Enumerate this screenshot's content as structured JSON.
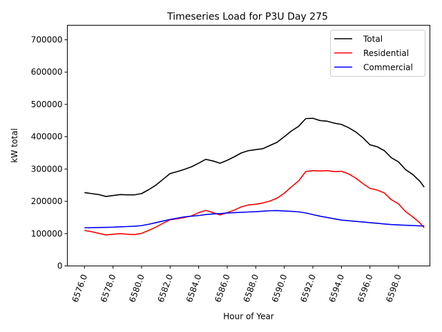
{
  "chart_data": {
    "type": "line",
    "title": "Timeseries Load for P3U   Day 275",
    "xlabel": "Hour of Year",
    "ylabel": "kW total",
    "xlim": [
      6574.8,
      6600.2
    ],
    "ylim": [
      0,
      745000
    ],
    "xticks": [
      6576,
      6578,
      6580,
      6582,
      6584,
      6586,
      6588,
      6590,
      6592,
      6594,
      6596,
      6598
    ],
    "xtick_labels": [
      "6576.0",
      "6578.0",
      "6580.0",
      "6582.0",
      "6584.0",
      "6586.0",
      "6588.0",
      "6590.0",
      "6592.0",
      "6594.0",
      "6596.0",
      "6598.0"
    ],
    "yticks": [
      0,
      100000,
      200000,
      300000,
      400000,
      500000,
      600000,
      700000
    ],
    "ytick_labels": [
      "0",
      "100000",
      "200000",
      "300000",
      "400000",
      "500000",
      "600000",
      "700000"
    ],
    "legend_position": "top-right",
    "x": [
      6576,
      6576.5,
      6577,
      6577.5,
      6578,
      6578.5,
      6579,
      6579.5,
      6580,
      6580.5,
      6581,
      6581.5,
      6582,
      6582.5,
      6583,
      6583.5,
      6584,
      6584.5,
      6585,
      6585.5,
      6586,
      6586.5,
      6587,
      6587.5,
      6588,
      6588.5,
      6589,
      6589.5,
      6590,
      6590.5,
      6591,
      6591.5,
      6592,
      6592.5,
      6593,
      6593.5,
      6594,
      6594.5,
      6595,
      6595.5,
      6596,
      6596.5,
      6597,
      6597.5,
      6598,
      6598.5,
      6599,
      6599.5,
      6599.8
    ],
    "series": [
      {
        "name": "Total",
        "color": "#000000",
        "values": [
          227000,
          224000,
          221000,
          215000,
          218000,
          221000,
          220000,
          220000,
          224000,
          236000,
          250000,
          268000,
          286000,
          292000,
          299000,
          307000,
          318000,
          330000,
          325000,
          318000,
          327000,
          338000,
          350000,
          357000,
          360000,
          363000,
          373000,
          383000,
          400000,
          418000,
          432000,
          456000,
          457000,
          450000,
          448000,
          442000,
          438000,
          428000,
          415000,
          397000,
          375000,
          369000,
          357000,
          335000,
          322000,
          298000,
          283000,
          262000,
          244000
        ]
      },
      {
        "name": "Residential",
        "color": "#ff0000",
        "values": [
          110000,
          106000,
          101000,
          96000,
          98000,
          100000,
          98000,
          97000,
          101000,
          110000,
          120000,
          132000,
          143000,
          146000,
          150000,
          155000,
          165000,
          172000,
          165000,
          158000,
          165000,
          173000,
          183000,
          189000,
          191000,
          195000,
          201000,
          210000,
          225000,
          245000,
          263000,
          292000,
          295000,
          294000,
          295000,
          292000,
          293000,
          285000,
          272000,
          255000,
          240000,
          235000,
          226000,
          205000,
          192000,
          168000,
          152000,
          133000,
          118000
        ]
      },
      {
        "name": "Commercial",
        "color": "#0000ff",
        "values": [
          118000,
          118500,
          119000,
          119500,
          120000,
          121000,
          122000,
          123000,
          125000,
          129000,
          134000,
          139000,
          144000,
          148000,
          152000,
          154000,
          156000,
          159000,
          161000,
          162000,
          164000,
          165000,
          166000,
          167000,
          168000,
          169500,
          171000,
          171500,
          170000,
          169000,
          167500,
          164000,
          159000,
          154000,
          150000,
          146000,
          142000,
          140000,
          138000,
          136000,
          134000,
          132000,
          130000,
          128000,
          127000,
          126000,
          125000,
          124000,
          124000
        ]
      }
    ]
  }
}
